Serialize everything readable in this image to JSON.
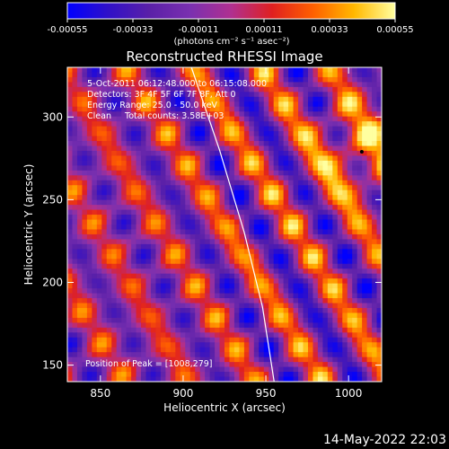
{
  "chart_data": {
    "type": "heatmap",
    "title": "Reconstructed RHESSI Image",
    "xlabel": "Heliocentric X (arcsec)",
    "ylabel": "Heliocentric Y (arcsec)",
    "xlim": [
      830,
      1020
    ],
    "ylim": [
      140,
      330
    ],
    "x_ticks": [
      850,
      900,
      950,
      1000
    ],
    "y_ticks": [
      150,
      200,
      250,
      300
    ],
    "colorbar": {
      "range": [
        -0.00055,
        0.00055
      ],
      "ticks": [
        "-0.00055",
        "-0.00033",
        "-0.00011",
        "0.00011",
        "0.00033",
        "0.00055"
      ],
      "unit_label": "(photons cm⁻² s⁻¹ asec⁻²)",
      "colormap": [
        "#0000ff",
        "#3010c8",
        "#5a20a8",
        "#7a30b0",
        "#b03090",
        "#e02020",
        "#ff6000",
        "#ffb800",
        "#ffffa0"
      ]
    },
    "annotations": [
      "5-Oct-2011 06:12:48.000 to 06:15:08.000",
      "Detectors: 3F 4F 5F 6F 7F 8F, Att 0",
      "Energy Range: 25.0 - 50.0 keV",
      "Clean     Total counts: 3.58E+03"
    ],
    "peak_label": "Position of Peak = [1008,279]",
    "peak_position": [
      1008,
      279
    ],
    "limb_curve": [
      [
        905,
        330
      ],
      [
        922,
        280
      ],
      [
        937,
        230
      ],
      [
        948,
        185
      ],
      [
        955,
        140
      ]
    ],
    "stripes": {
      "angle_deg": -58,
      "period_arcsec": 34
    },
    "grid": false
  },
  "footer": {
    "date": "14-May-2022 22:03"
  }
}
